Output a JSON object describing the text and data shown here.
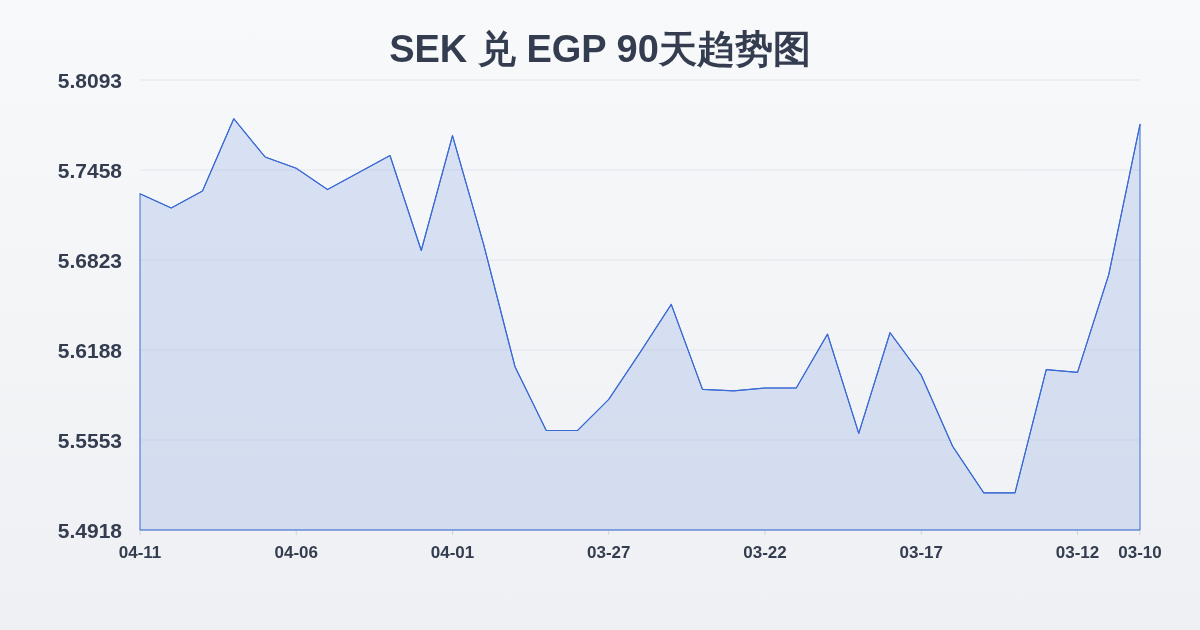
{
  "chart_data": {
    "type": "area",
    "title": "SEK 兑 EGP 90天趋势图",
    "categories": [
      "04-11",
      null,
      null,
      null,
      null,
      "04-06",
      null,
      null,
      null,
      null,
      "04-01",
      null,
      null,
      null,
      null,
      "03-27",
      null,
      null,
      null,
      null,
      "03-22",
      null,
      null,
      null,
      null,
      "03-17",
      null,
      null,
      null,
      null,
      "03-12",
      null,
      "03-10"
    ],
    "series": [
      {
        "color": "#3a6ad4",
        "values": [
          5.729,
          5.719,
          5.731,
          5.782,
          5.755,
          5.747,
          5.732,
          5.744,
          5.756,
          5.689,
          5.77,
          5.693,
          5.607,
          5.562,
          5.562,
          5.584,
          5.617,
          5.651,
          5.591,
          5.59,
          5.592,
          5.592,
          5.63,
          5.56,
          5.631,
          5.601,
          5.551,
          5.518,
          5.518,
          5.605,
          5.603,
          5.672,
          5.778
        ]
      }
    ],
    "ylim": [
      5.4918,
      5.8093
    ],
    "yticks": [
      5.4918,
      5.5553,
      5.6188,
      5.6823,
      5.7458,
      5.8093
    ],
    "grid": "y"
  }
}
